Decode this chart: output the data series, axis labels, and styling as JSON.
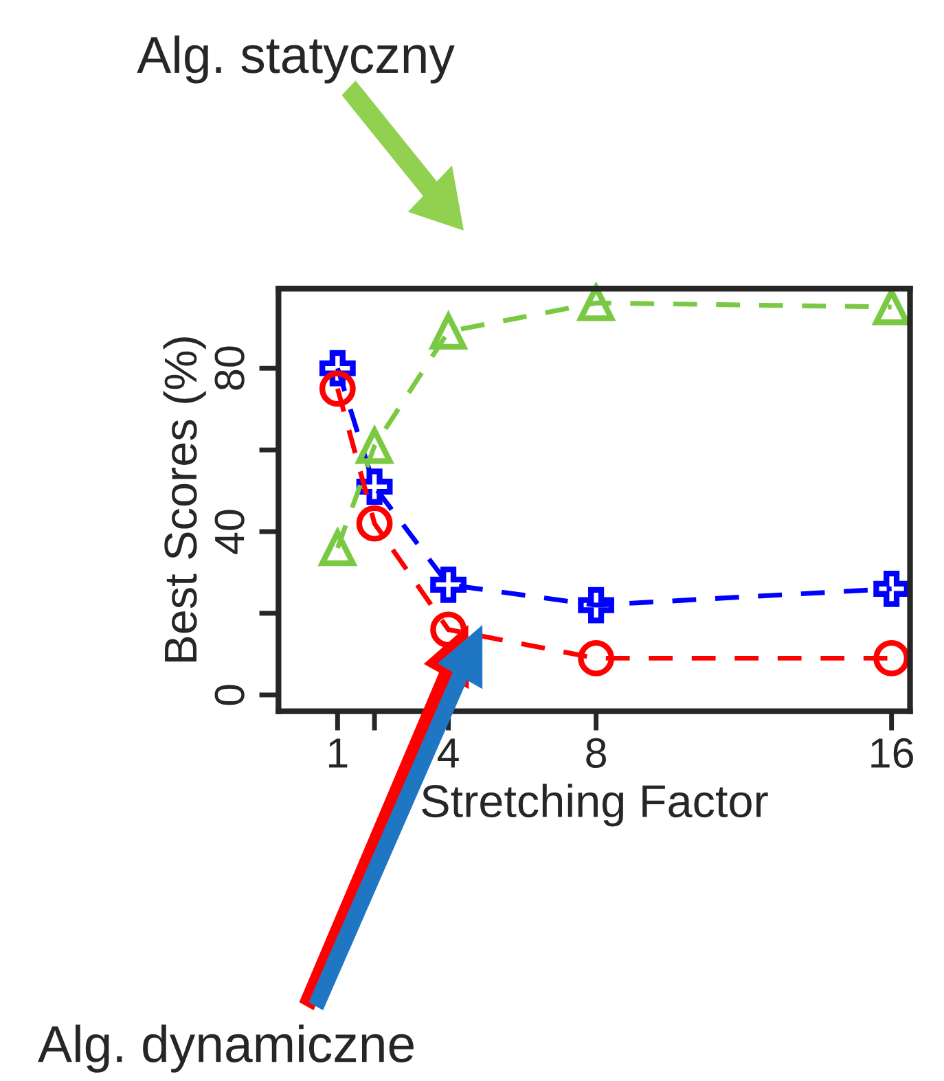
{
  "chart_data": {
    "type": "line",
    "xlabel": "Stretching Factor",
    "ylabel": "Best Scores (%)",
    "x": [
      1,
      2,
      4,
      8,
      16
    ],
    "series": [
      {
        "color": "#0000ff",
        "marker": "cross",
        "values": [
          80,
          51,
          27,
          22,
          26
        ]
      },
      {
        "color": "#ff0000",
        "marker": "circle",
        "values": [
          75,
          42,
          16,
          9,
          9
        ]
      },
      {
        "color": "#7ac943",
        "marker": "triangle",
        "values": [
          36,
          61,
          89,
          96,
          95
        ]
      }
    ],
    "xlim": [
      -0.6,
      16.5
    ],
    "ylim": [
      -4,
      99.5
    ],
    "xticks": [
      1,
      {
        "value": 2,
        "label": null
      },
      4,
      8,
      16
    ],
    "yticks": [
      0,
      {
        "value": 20,
        "label": null
      },
      40,
      {
        "value": 60,
        "label": null
      },
      80
    ],
    "line_style": "dashed",
    "grid": false,
    "legend": false,
    "annotations": [
      "Alg. statyczny",
      "Alg. dynamiczne"
    ]
  }
}
